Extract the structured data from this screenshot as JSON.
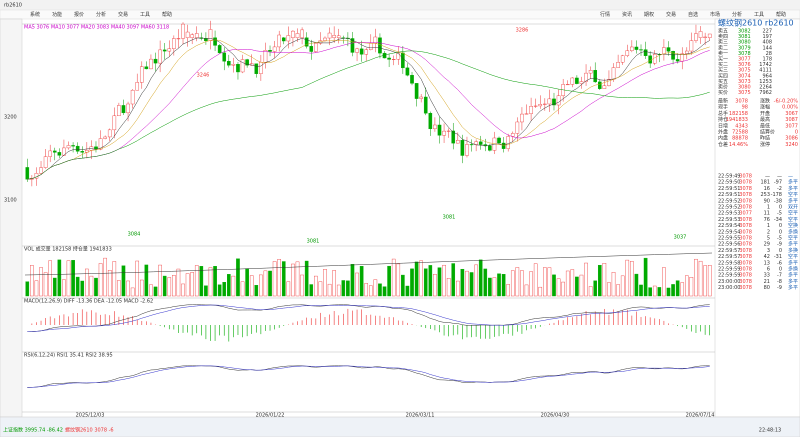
{
  "window": {
    "title": "rb2610",
    "menu": [
      "系统",
      "功能",
      "报价",
      "分析",
      "交易",
      "工具",
      "帮助"
    ]
  },
  "toolbar": [
    "行情",
    "资讯",
    "期权",
    "交易",
    "自选",
    "市场",
    "分析",
    "工具",
    "帮助"
  ],
  "price_chart": {
    "legend": "MA5 3076 MA10 3077 MA20 3083 MA40 3097 MA60 3118",
    "axis": [
      "3200",
      "3100"
    ],
    "annotations": [
      "3246",
      "3286",
      "3084",
      "3081",
      "3081",
      "3037"
    ]
  },
  "volume_chart": {
    "legend": "VOL 成交量 182158 持仓量 1941833"
  },
  "macd_chart": {
    "legend": "MACD(12,26,9) DIFF -13.36 DEA -12.05 MACD -2.62"
  },
  "rsi_chart": {
    "legend": "RSI(6,12,24) RSI1 35.41 RSI2 38.95"
  },
  "dates": [
    "2025/12/03",
    "2026/01/22",
    "2026/03/11",
    "2026/04/30",
    "2026/07/14"
  ],
  "quote": {
    "title": "螺纹钢2610 rb2610",
    "book": [
      [
        "卖五",
        "3082",
        "227"
      ],
      [
        "卖四",
        "3081",
        "197"
      ],
      [
        "卖三",
        "3080",
        "408"
      ],
      [
        "卖二",
        "3079",
        "144"
      ],
      [
        "卖一",
        "3078",
        "28"
      ],
      [
        "买一",
        "3077",
        "178"
      ],
      [
        "买二",
        "3076",
        "1742"
      ],
      [
        "买三",
        "3075",
        "4111"
      ],
      [
        "买四",
        "3074",
        "964"
      ],
      [
        "买五",
        "3073",
        "1253"
      ],
      [
        "卖价",
        "3080",
        "2264"
      ],
      [
        "买价",
        "3075",
        "7962"
      ]
    ],
    "info": [
      [
        "最新",
        "3078",
        "涨跌",
        "-6/-0.20%"
      ],
      [
        "现手",
        "98",
        "涨幅",
        "0.00%"
      ],
      [
        "总手",
        "182158",
        "开盘",
        "3067"
      ],
      [
        "持仓",
        "1941833",
        "最高",
        "3087"
      ],
      [
        "日增",
        "4343",
        "最低",
        "3077"
      ],
      [
        "外盘",
        "72588",
        "结算价",
        "0"
      ],
      [
        "内盘",
        "88878",
        "昨结",
        "3086"
      ],
      [
        "仓差",
        "14.46%",
        "涨停",
        "3240"
      ]
    ],
    "trades": [
      [
        "22:59:49",
        "3078",
        "—",
        "—",
        "—"
      ],
      [
        "22:59:50",
        "3078",
        "181",
        "-97",
        "多平"
      ],
      [
        "22:59:51",
        "3078",
        "16",
        "-2",
        "多平"
      ],
      [
        "22:59:51",
        "3078",
        "253",
        "-178",
        "空平"
      ],
      [
        "22:59:52",
        "3078",
        "90",
        "-38",
        "多平"
      ],
      [
        "22:59:52",
        "3078",
        "1",
        "0",
        "双开"
      ],
      [
        "22:59:53",
        "3077",
        "11",
        "-5",
        "空平"
      ],
      [
        "22:59:53",
        "3078",
        "76",
        "-34",
        "空平"
      ],
      [
        "22:59:54",
        "3078",
        "1",
        "0",
        "空换"
      ],
      [
        "22:59:54",
        "3078",
        "2",
        "0",
        "多换"
      ],
      [
        "22:59:55",
        "3078",
        "5",
        "-5",
        "空平"
      ],
      [
        "22:59:56",
        "3078",
        "29",
        "-9",
        "多平"
      ],
      [
        "22:59:57",
        "3078",
        "3",
        "0",
        "多换"
      ],
      [
        "22:59:57",
        "3078",
        "42",
        "-31",
        "空平"
      ],
      [
        "22:59:58",
        "3078",
        "13",
        "-6",
        "多平"
      ],
      [
        "22:59:59",
        "3078",
        "6",
        "0",
        "多换"
      ],
      [
        "22:59:59",
        "3078",
        "33",
        "-7",
        "多平"
      ],
      [
        "23:00:00",
        "3078",
        "21",
        "-8",
        "多平"
      ],
      [
        "23:00:00",
        "3078",
        "80",
        "-9",
        "多平"
      ]
    ]
  },
  "status": {
    "left": "上证指数 3995.74 -86.42",
    "mid": "螺纹钢2610 3078 -6",
    "time": "22:48:13"
  }
}
